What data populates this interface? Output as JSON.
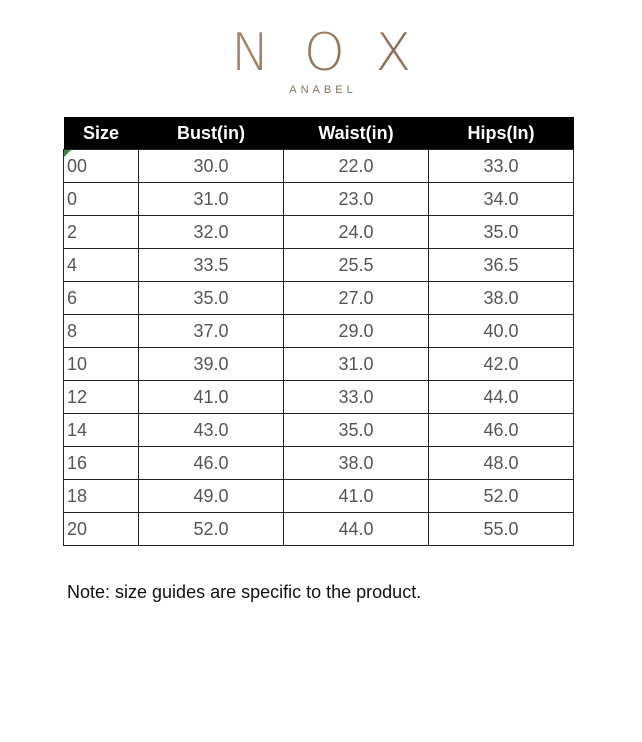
{
  "logo": {
    "mark": "NOX",
    "brand": "ANABEL"
  },
  "table": {
    "header": [
      "Size",
      "Bust(in)",
      "Waist(in)",
      "Hips(In)"
    ],
    "rows": [
      [
        "00",
        "30.0",
        "22.0",
        "33.0"
      ],
      [
        "0",
        "31.0",
        "23.0",
        "34.0"
      ],
      [
        "2",
        "32.0",
        "24.0",
        "35.0"
      ],
      [
        "4",
        "33.5",
        "25.5",
        "36.5"
      ],
      [
        "6",
        "35.0",
        "27.0",
        "38.0"
      ],
      [
        "8",
        "37.0",
        "29.0",
        "40.0"
      ],
      [
        "10",
        "39.0",
        "31.0",
        "42.0"
      ],
      [
        "12",
        "41.0",
        "33.0",
        "44.0"
      ],
      [
        "14",
        "43.0",
        "35.0",
        "46.0"
      ],
      [
        "16",
        "46.0",
        "38.0",
        "48.0"
      ],
      [
        "18",
        "49.0",
        "41.0",
        "52.0"
      ],
      [
        "20",
        "52.0",
        "44.0",
        "55.0"
      ]
    ]
  },
  "note": "Note: size guides are specific to the product."
}
